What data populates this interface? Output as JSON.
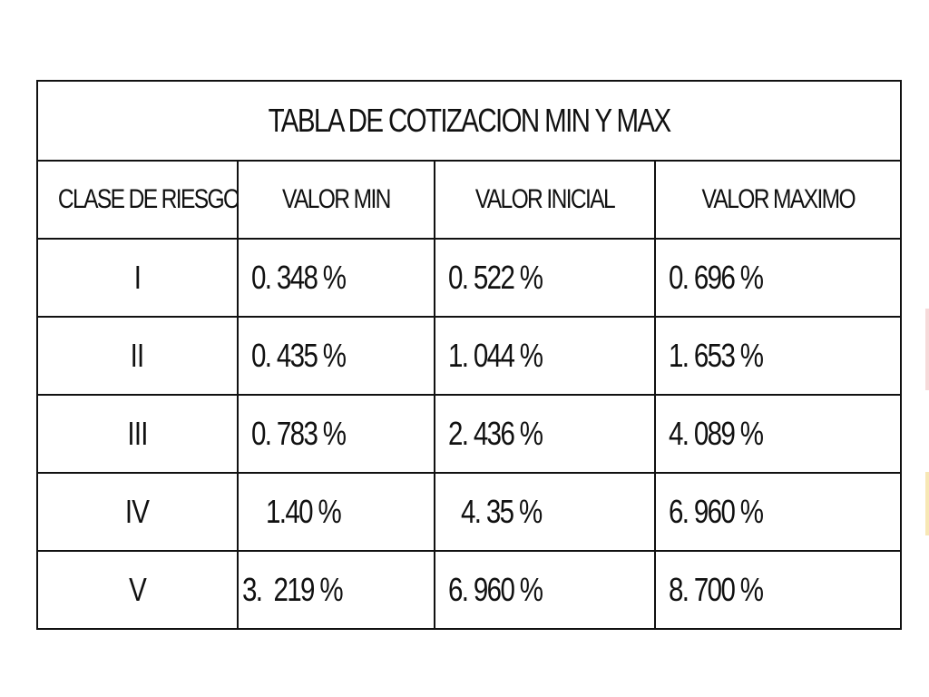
{
  "table": {
    "title": "TABLA DE COTIZACION MIN Y MAX",
    "headers": [
      "CLASE DE RIESGO",
      "VALOR MIN",
      "VALOR INICIAL",
      "VALOR MAXIMO"
    ],
    "rows": [
      {
        "clase": "I",
        "min": "0. 348 %",
        "inicial": "0. 522 %",
        "maximo": "0. 696 %"
      },
      {
        "clase": "II",
        "min": "0. 435 %",
        "inicial": "1. 044 %",
        "maximo": "1. 653 %"
      },
      {
        "clase": "III",
        "min": "0. 783 %",
        "inicial": "2. 436 %",
        "maximo": "4. 089 %"
      },
      {
        "clase": "IV",
        "min": "1.40 %",
        "inicial": "4. 35 %",
        "maximo": "6. 960 %"
      },
      {
        "clase": "V",
        "min": "3.  219 %",
        "inicial": "6. 960 %",
        "maximo": "8. 700 %"
      }
    ]
  }
}
